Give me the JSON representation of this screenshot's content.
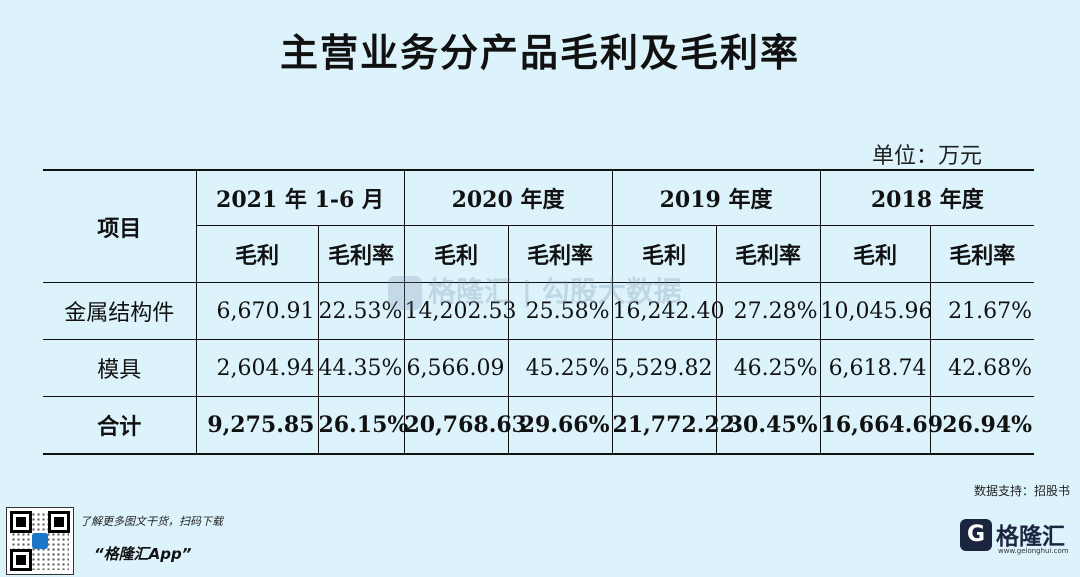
{
  "title": "主营业务分产品毛利及毛利率",
  "unit": "单位：万元",
  "table": {
    "corner": "项目",
    "periods": [
      "2021 年 1-6 月",
      "2020 年度",
      "2019 年度",
      "2018 年度"
    ],
    "sub_headers": [
      "毛利",
      "毛利率",
      "毛利",
      "毛利率",
      "毛利",
      "毛利率",
      "毛利",
      "毛利率"
    ],
    "rows": [
      {
        "label": "金属结构件",
        "values": [
          "6,670.91",
          "22.53%",
          "14,202.53",
          "25.58%",
          "16,242.40",
          "27.28%",
          "10,045.96",
          "21.67%"
        ]
      },
      {
        "label": "模具",
        "values": [
          "2,604.94",
          "44.35%",
          "6,566.09",
          "45.25%",
          "5,529.82",
          "46.25%",
          "6,618.74",
          "42.68%"
        ]
      },
      {
        "label": "合计",
        "values": [
          "9,275.85",
          "26.15%",
          "20,768.63",
          "29.66%",
          "21,772.22",
          "30.45%",
          "16,664.69",
          "26.94%"
        ]
      }
    ]
  },
  "watermark": {
    "brand": "格隆汇",
    "text": "勾股大数据"
  },
  "source": "数据支持：招股书",
  "footer": {
    "promo_line1": "了解更多图文干货，扫码下载",
    "promo_line2": "“格隆汇App”",
    "brand_name": "格隆汇",
    "brand_url": "www.gelonghui.com"
  },
  "colors": {
    "background": "#dcf3fc",
    "brand_dark": "#1c2540",
    "qr_center": "#1b76c9"
  },
  "icons": {
    "qr": "qr-code-icon",
    "brand": "gelonghui-logo-icon"
  }
}
